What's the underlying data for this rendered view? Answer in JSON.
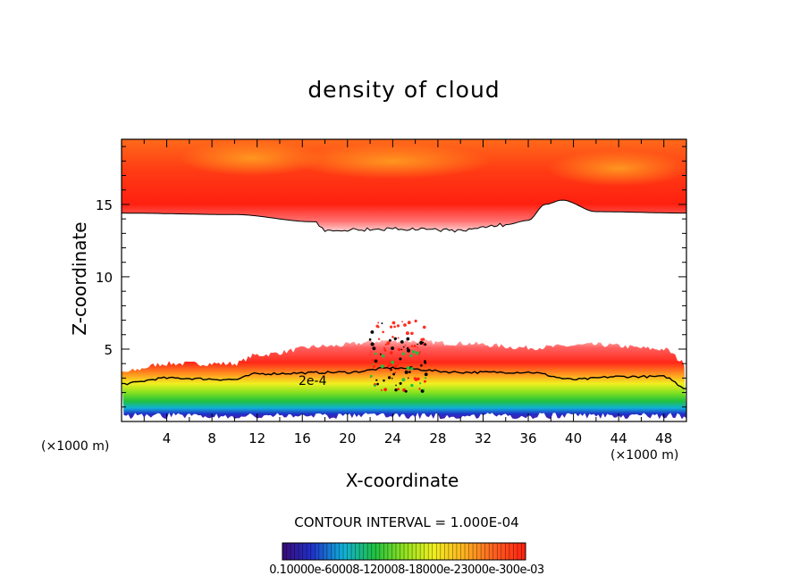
{
  "chart_data": {
    "type": "heatmap",
    "title": "density of cloud",
    "xlabel": "X-coordinate",
    "ylabel": "Z-coordinate",
    "x_unit": "(×1000 m)",
    "y_unit": "",
    "xlim": [
      0,
      50
    ],
    "ylim": [
      0,
      19.5
    ],
    "x_ticks": [
      4,
      8,
      12,
      16,
      20,
      24,
      28,
      32,
      36,
      40,
      44,
      48
    ],
    "y_ticks": [
      5,
      10,
      15
    ],
    "contour_interval_text": "CONTOUR INTERVAL = 1.000E-04",
    "colorbar_text": "0.10000e-60008-120008-18000e-23000e-300e-03",
    "contour_label": "2e-4",
    "colors": [
      "#3a0a78",
      "#2030c8",
      "#10b0d8",
      "#20c040",
      "#90e020",
      "#f0f020",
      "#ffb020",
      "#ff6020",
      "#ff2010",
      "#ffd0d0"
    ],
    "upper_cloud": {
      "base_profile": [
        [
          0,
          14.4
        ],
        [
          10,
          14.3
        ],
        [
          17,
          13.8
        ],
        [
          18,
          13.2
        ],
        [
          24,
          13.3
        ],
        [
          30,
          13.2
        ],
        [
          34,
          13.6
        ],
        [
          36,
          13.9
        ],
        [
          37.5,
          15.0
        ],
        [
          39,
          15.3
        ],
        [
          42,
          14.5
        ],
        [
          50,
          14.4
        ]
      ],
      "core_regions": [
        [
          11.5,
          18.2
        ],
        [
          24,
          18.0
        ],
        [
          44,
          17.5
        ]
      ]
    },
    "lower_cloud": {
      "top_profile": [
        [
          0,
          3.4
        ],
        [
          4,
          4.0
        ],
        [
          10,
          4.0
        ],
        [
          12,
          4.6
        ],
        [
          18,
          5.2
        ],
        [
          24,
          5.6
        ],
        [
          30,
          5.4
        ],
        [
          36,
          5.1
        ],
        [
          42,
          5.3
        ],
        [
          48,
          5.0
        ],
        [
          50,
          4.0
        ]
      ],
      "contour_2e4_profile": [
        [
          0,
          2.6
        ],
        [
          4,
          3.0
        ],
        [
          10,
          2.9
        ],
        [
          12,
          3.3
        ],
        [
          20,
          3.4
        ],
        [
          24,
          3.7
        ],
        [
          30,
          3.4
        ],
        [
          36,
          3.4
        ],
        [
          40,
          2.9
        ],
        [
          44,
          3.1
        ],
        [
          48,
          3.1
        ],
        [
          50,
          2.3
        ]
      ],
      "base_height": 0.3
    }
  }
}
